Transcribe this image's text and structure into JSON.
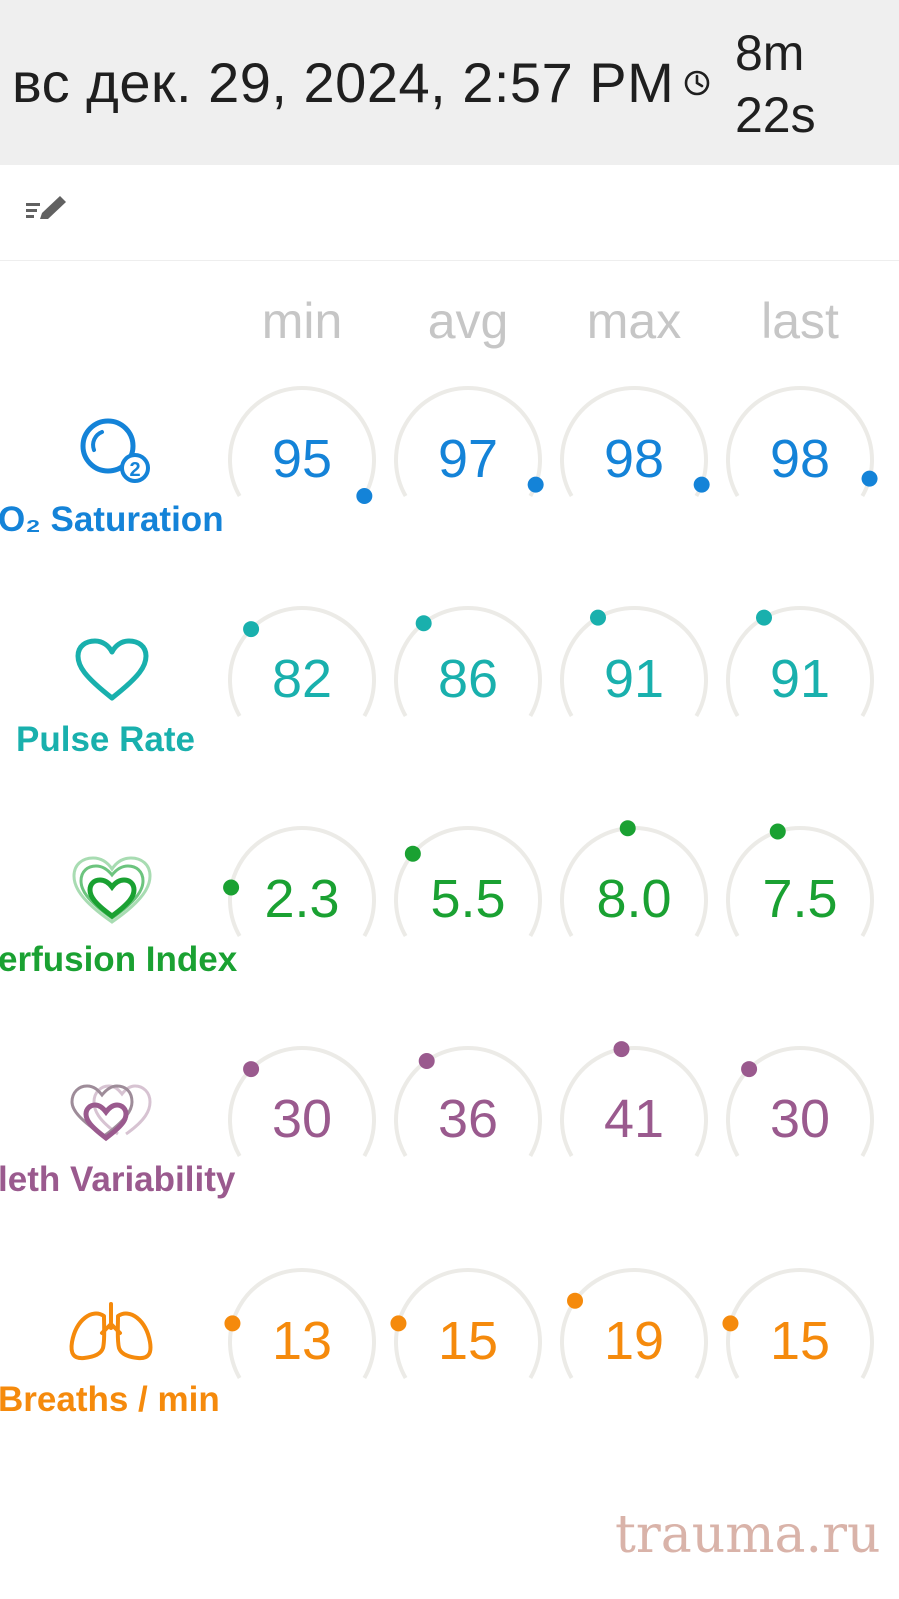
{
  "header": {
    "datetime": "вс дек. 29, 2024, 2:57 PM",
    "duration_minutes": "8m",
    "duration_seconds": "22s"
  },
  "columns": [
    "min",
    "avg",
    "max",
    "last"
  ],
  "metrics": [
    {
      "key": "o2",
      "label": "O₂ Saturation",
      "color": "#1483d8",
      "icon": "o2-bubbles-icon",
      "values": [
        "95",
        "97",
        "98",
        "98"
      ],
      "dial_angles": [
        30,
        20,
        20,
        15
      ]
    },
    {
      "key": "pulse",
      "label": "Pulse Rate",
      "color": "#19b0ad",
      "icon": "heart-outline-icon",
      "values": [
        "82",
        "86",
        "91",
        "91"
      ],
      "dial_angles": [
        -135,
        -128,
        -120,
        -120
      ]
    },
    {
      "key": "perf",
      "label": "erfusion Index",
      "color": "#1aa132",
      "icon": "layered-hearts-icon",
      "values": [
        "2.3",
        "5.5",
        "8.0",
        "7.5"
      ],
      "dial_angles": [
        -170,
        -140,
        -95,
        -108
      ]
    },
    {
      "key": "pleth",
      "label": "leth Variability",
      "color": "#9a5a8e",
      "icon": "pleth-hearts-icon",
      "values": [
        "30",
        "36",
        "41",
        "30"
      ],
      "dial_angles": [
        -135,
        -125,
        -100,
        -135
      ]
    },
    {
      "key": "breath",
      "label": "Breaths / min",
      "color": "#f58a0c",
      "icon": "lungs-icon",
      "values": [
        "13",
        "15",
        "19",
        "15"
      ],
      "dial_angles": [
        -165,
        -165,
        -145,
        -165
      ]
    }
  ],
  "watermark": "trauma.ru"
}
